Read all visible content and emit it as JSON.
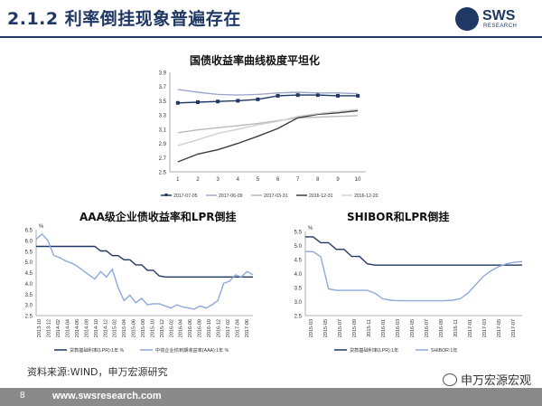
{
  "page": {
    "title": "2.1.2 利率倒挂现象普遍存在",
    "source": "资料来源:WIND，申万宏源研究",
    "page_number": "8",
    "url": "www.swsresearch.com",
    "watermark": "申万宏源宏观",
    "logo": {
      "text": "SWS",
      "subtext": "RESEARCH",
      "color": "#1f3864"
    }
  },
  "chart_data": [
    {
      "type": "line",
      "title": "国债收益率曲线极度平坦化",
      "x": [
        1,
        2,
        3,
        4,
        5,
        6,
        7,
        8,
        9,
        10
      ],
      "xticks": [
        "1",
        "2",
        "3",
        "4",
        "5",
        "6",
        "7",
        "8",
        "9",
        "10"
      ],
      "ylim": [
        2.5,
        3.9
      ],
      "yticks": [
        "2.5",
        "2.7",
        "2.9",
        "3.1",
        "3.3",
        "3.5",
        "3.7",
        "3.9"
      ],
      "series": [
        {
          "name": "2017-07-05",
          "color": "#1f3864",
          "marker": true,
          "values": [
            3.47,
            3.48,
            3.49,
            3.5,
            3.52,
            3.57,
            3.58,
            3.58,
            3.57,
            3.57
          ]
        },
        {
          "name": "2017-06-09",
          "color": "#9fa8c9",
          "values": [
            3.66,
            3.62,
            3.59,
            3.58,
            3.59,
            3.61,
            3.62,
            3.61,
            3.61,
            3.6
          ]
        },
        {
          "name": "2017-03-31",
          "color": "#b9b9b9",
          "values": [
            3.05,
            3.09,
            3.12,
            3.15,
            3.18,
            3.22,
            3.26,
            3.27,
            3.28,
            3.29
          ]
        },
        {
          "name": "2016-12-31",
          "color": "#3d3d3d",
          "values": [
            2.64,
            2.75,
            2.81,
            2.9,
            3.0,
            3.11,
            3.26,
            3.31,
            3.33,
            3.36
          ]
        },
        {
          "name": "2016-12-20",
          "color": "#d0d0d0",
          "values": [
            2.87,
            2.95,
            3.04,
            3.1,
            3.16,
            3.21,
            3.28,
            3.32,
            3.35,
            3.38
          ]
        }
      ]
    },
    {
      "type": "line",
      "title": "AAA级企业债收益率和LPR倒挂",
      "unit": "%",
      "ylim": [
        2.5,
        6.5
      ],
      "yticks": [
        "2.5",
        "3.0",
        "3.5",
        "4.0",
        "4.5",
        "5.0",
        "5.5",
        "6.0",
        "6.5"
      ],
      "xticks": [
        "2013-10",
        "2013-12",
        "2014-02",
        "2014-04",
        "2014-06",
        "2014-08",
        "2014-10",
        "2014-12",
        "2015-02",
        "2015-04",
        "2015-06",
        "2015-08",
        "2015-10",
        "2015-12",
        "2016-02",
        "2016-04",
        "2016-06",
        "2016-08",
        "2016-10",
        "2016-12",
        "2017-02",
        "2017-04",
        "2017-06"
      ],
      "series": [
        {
          "name": "贷款基础利率(LPR):1年 %",
          "color": "#1f3864",
          "values": [
            5.72,
            5.72,
            5.72,
            5.72,
            5.72,
            5.72,
            5.72,
            5.72,
            5.72,
            5.72,
            5.72,
            5.51,
            5.51,
            5.29,
            5.29,
            5.1,
            5.1,
            4.86,
            4.86,
            4.61,
            4.61,
            4.35,
            4.3,
            4.3,
            4.3,
            4.3,
            4.3,
            4.3,
            4.3,
            4.3,
            4.3,
            4.3,
            4.3,
            4.3,
            4.3,
            4.3,
            4.3,
            4.3
          ]
        },
        {
          "name": "中债企业债到期收益率(AAA):1年 %",
          "color": "#8ea9db",
          "values": [
            6.05,
            6.3,
            6.0,
            5.3,
            5.2,
            5.05,
            4.95,
            4.8,
            4.6,
            4.4,
            4.2,
            4.55,
            4.3,
            4.65,
            3.8,
            3.2,
            3.45,
            3.1,
            3.3,
            3.0,
            3.05,
            3.05,
            2.95,
            2.85,
            3.0,
            2.9,
            2.85,
            2.8,
            2.95,
            2.85,
            3.0,
            3.2,
            4.0,
            4.1,
            4.4,
            4.3,
            4.55,
            4.4
          ]
        }
      ]
    },
    {
      "type": "line",
      "title": "SHIBOR和LPR倒挂",
      "unit": "%",
      "ylim": [
        2.5,
        5.5
      ],
      "yticks": [
        "2.5",
        "3.0",
        "3.5",
        "4.0",
        "4.5",
        "5.0",
        "5.5"
      ],
      "xticks": [
        "2015-03",
        "2015-05",
        "2015-07",
        "2015-09",
        "2015-11",
        "2016-01",
        "2016-03",
        "2016-05",
        "2016-07",
        "2016-09",
        "2016-11",
        "2017-01",
        "2017-03",
        "2017-05",
        "2017-07"
      ],
      "series": [
        {
          "name": "贷款基础利率(LPR):1年",
          "color": "#1f3864",
          "values": [
            5.31,
            5.31,
            5.1,
            5.1,
            4.86,
            4.86,
            4.61,
            4.61,
            4.35,
            4.3,
            4.3,
            4.3,
            4.3,
            4.3,
            4.3,
            4.3,
            4.3,
            4.3,
            4.3,
            4.3,
            4.3,
            4.3,
            4.3,
            4.3,
            4.3,
            4.3,
            4.3,
            4.3,
            4.3
          ]
        },
        {
          "name": "SHIBOR:1年",
          "color": "#8ea9db",
          "values": [
            4.78,
            4.78,
            4.6,
            3.45,
            3.4,
            3.4,
            3.4,
            3.4,
            3.4,
            3.3,
            3.1,
            3.05,
            3.03,
            3.03,
            3.03,
            3.03,
            3.03,
            3.03,
            3.03,
            3.05,
            3.1,
            3.3,
            3.6,
            3.9,
            4.1,
            4.25,
            4.35,
            4.4,
            4.43
          ]
        }
      ]
    }
  ]
}
